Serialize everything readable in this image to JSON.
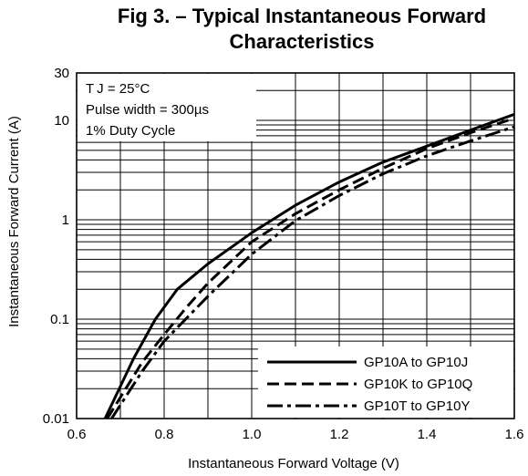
{
  "chart_data": {
    "type": "line",
    "title_lines": [
      "Fig 3. – Typical Instantaneous Forward",
      "Characteristics"
    ],
    "xlabel": "Instantaneous Forward Voltage (V)",
    "ylabel": "Instantaneous Forward Current (A)",
    "xlim": [
      0.6,
      1.6
    ],
    "ylim": [
      0.01,
      30
    ],
    "yscale": "log",
    "grid": true,
    "x_ticks": [
      "0.6",
      "0.8",
      "1.0",
      "1.2",
      "1.4",
      "1.6"
    ],
    "y_ticks": [
      "0.01",
      "0.1",
      "1",
      "10",
      "30"
    ],
    "annotations": [
      "T J = 25°C",
      "Pulse width = 300µs",
      "1% Duty Cycle"
    ],
    "legend_position": "bottom-right",
    "series": [
      {
        "name": "GP10A to GP10J",
        "style": "solid",
        "x": [
          0.665,
          0.73,
          0.78,
          0.83,
          0.9,
          1.0,
          1.1,
          1.2,
          1.3,
          1.4,
          1.5,
          1.6
        ],
        "y": [
          0.01,
          0.04,
          0.1,
          0.2,
          0.36,
          0.74,
          1.4,
          2.4,
          3.8,
          5.5,
          8.0,
          11.5
        ]
      },
      {
        "name": "GP10K to GP10Q",
        "style": "dashed",
        "x": [
          0.67,
          0.75,
          0.8,
          0.85,
          0.9,
          1.0,
          1.1,
          1.2,
          1.3,
          1.4,
          1.5,
          1.6
        ],
        "y": [
          0.01,
          0.037,
          0.07,
          0.13,
          0.23,
          0.6,
          1.15,
          2.0,
          3.3,
          5.2,
          7.5,
          10.5
        ]
      },
      {
        "name": "GP10T to GP10Y",
        "style": "dash-dot",
        "x": [
          0.68,
          0.75,
          0.8,
          0.9,
          1.0,
          1.1,
          1.2,
          1.3,
          1.4,
          1.5,
          1.6
        ],
        "y": [
          0.01,
          0.03,
          0.06,
          0.17,
          0.45,
          0.98,
          1.75,
          2.9,
          4.4,
          6.2,
          8.6
        ]
      }
    ]
  }
}
